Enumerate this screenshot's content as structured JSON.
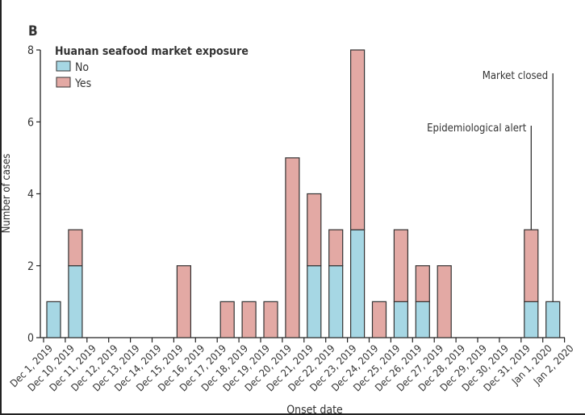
{
  "chart_data": {
    "type": "bar",
    "stacked": true,
    "panel_label": "B",
    "xlabel": "Onset date",
    "ylabel": "Number of cases",
    "ylim": [
      0,
      8
    ],
    "yticks": [
      0,
      2,
      4,
      6,
      8
    ],
    "grid": false,
    "legend": {
      "title": "Huanan seafood market exposure",
      "position": "top-left"
    },
    "categories": [
      "Dec 1, 2019",
      "Dec 10, 2019",
      "Dec 11, 2019",
      "Dec 12, 2019",
      "Dec 13, 2019",
      "Dec 14, 2019",
      "Dec 15, 2019",
      "Dec 16, 2019",
      "Dec 17, 2019",
      "Dec 18, 2019",
      "Dec 19, 2019",
      "Dec 20, 2019",
      "Dec 21, 2019",
      "Dec 22, 2019",
      "Dec 23, 2019",
      "Dec 24, 2019",
      "Dec 25, 2019",
      "Dec 26, 2019",
      "Dec 27, 2019",
      "Dec 28, 2019",
      "Dec 29, 2019",
      "Dec 30, 2019",
      "Dec 31, 2019",
      "Jan 1, 2020",
      "Jan 2, 2020"
    ],
    "series": [
      {
        "name": "No",
        "color": "#a6d7e4",
        "values": [
          1,
          2,
          0,
          0,
          0,
          0,
          0,
          0,
          0,
          0,
          0,
          0,
          2,
          2,
          3,
          0,
          1,
          1,
          0,
          0,
          0,
          0,
          1,
          1,
          0
        ]
      },
      {
        "name": "Yes",
        "color": "#e3a9a4",
        "values": [
          0,
          1,
          0,
          0,
          0,
          0,
          2,
          0,
          1,
          1,
          1,
          5,
          2,
          1,
          5,
          1,
          2,
          1,
          2,
          0,
          0,
          0,
          2,
          0,
          0
        ]
      }
    ],
    "annotations": [
      {
        "text": "Epidemiological alert",
        "category": "Dec 31, 2019"
      },
      {
        "text": "Market closed",
        "category": "Jan 1, 2020"
      }
    ]
  }
}
